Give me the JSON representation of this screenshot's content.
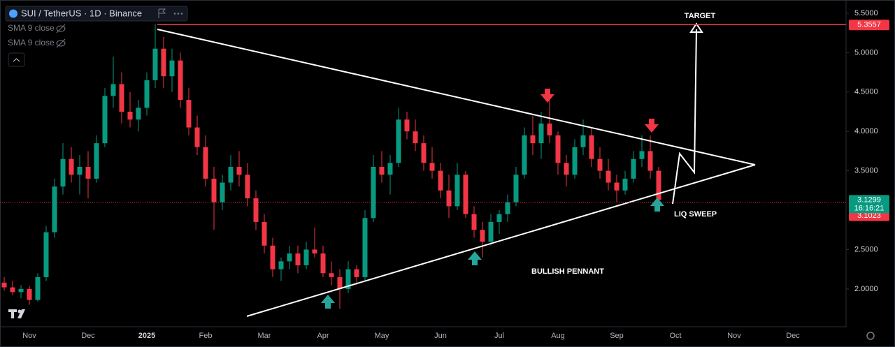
{
  "chart_data": {
    "type": "candlestick",
    "title": "SUI / TetherUS · 1D · Binance",
    "indicators": [
      "SMA 9 close",
      "SMA 9 close"
    ],
    "categories": [
      null,
      null,
      null,
      "Nov",
      null,
      null,
      null,
      null,
      null,
      null,
      "Dec",
      null,
      null,
      null,
      null,
      null,
      null,
      "2025",
      null,
      null,
      null,
      null,
      null,
      null,
      "Feb",
      null,
      null,
      null,
      null,
      null,
      null,
      "Mar",
      null,
      null,
      null,
      null,
      null,
      null,
      "Apr",
      null,
      null,
      null,
      null,
      null,
      null,
      "May",
      null,
      null,
      null,
      null,
      null,
      null,
      "Jun",
      null,
      null,
      null,
      null,
      null,
      null,
      "Jul",
      null,
      null,
      null,
      null,
      null,
      null,
      "Aug",
      null,
      null,
      null,
      null,
      null,
      null,
      "Sep",
      null,
      null,
      null,
      null,
      null,
      null,
      "Oct",
      null,
      null,
      null,
      null,
      null,
      null,
      "Nov",
      null,
      null,
      null,
      null,
      null,
      null,
      "Dec",
      null,
      null,
      null,
      null
    ],
    "open": [
      2.08,
      2.02,
      1.96,
      2.0,
      1.86,
      2.15,
      2.72,
      3.3,
      3.65,
      3.45,
      3.55,
      3.4,
      3.85,
      4.45,
      4.6,
      4.25,
      4.15,
      4.3,
      4.65,
      5.05,
      4.7,
      4.9,
      4.4,
      4.05,
      3.8,
      3.4,
      3.1,
      3.35,
      3.55,
      3.45,
      3.15,
      2.85,
      2.55,
      2.25,
      2.35,
      2.45,
      2.3,
      2.5,
      2.45,
      2.2,
      2.15,
      2.0,
      2.25,
      2.15,
      2.9,
      3.55,
      3.45,
      3.6,
      4.15,
      4.0,
      3.85,
      3.6,
      3.5,
      3.25,
      3.05,
      3.45,
      2.95,
      2.75,
      2.6,
      2.85,
      2.95,
      3.1,
      3.45,
      3.95,
      3.85,
      4.1,
      3.95,
      3.6,
      3.45,
      3.8,
      3.95,
      3.65,
      3.5,
      3.35,
      3.25,
      3.4,
      3.65,
      3.75,
      3.5,
      null,
      null,
      null,
      null,
      null,
      null,
      null,
      null,
      null,
      null,
      null,
      null,
      null,
      null,
      null,
      null,
      null,
      null,
      null,
      null
    ],
    "high": [
      2.15,
      2.1,
      2.05,
      2.04,
      2.2,
      2.8,
      3.4,
      3.85,
      3.8,
      3.7,
      3.75,
      3.95,
      4.55,
      4.95,
      4.75,
      4.5,
      4.4,
      4.75,
      5.36,
      5.2,
      5.05,
      5.0,
      4.55,
      4.2,
      3.95,
      3.55,
      3.45,
      3.7,
      3.75,
      3.6,
      3.25,
      2.95,
      2.65,
      2.4,
      2.55,
      2.55,
      2.6,
      2.78,
      2.55,
      2.35,
      2.25,
      2.35,
      2.3,
      3.0,
      3.7,
      3.75,
      3.7,
      4.3,
      4.25,
      4.15,
      3.95,
      3.8,
      3.6,
      3.45,
      3.6,
      3.5,
      3.05,
      2.85,
      2.95,
      3.0,
      3.2,
      3.55,
      4.05,
      4.2,
      4.25,
      4.4,
      4.0,
      3.7,
      3.9,
      4.15,
      4.05,
      3.8,
      3.65,
      3.45,
      3.5,
      3.75,
      3.95,
      3.95,
      3.55,
      null,
      null,
      null,
      null,
      null,
      null,
      null,
      null,
      null,
      null,
      null,
      null,
      null,
      null,
      null,
      null,
      null,
      null,
      null,
      null
    ],
    "low": [
      1.98,
      1.92,
      1.88,
      1.8,
      1.84,
      2.1,
      2.65,
      3.2,
      3.35,
      3.2,
      3.15,
      3.35,
      3.8,
      4.3,
      4.1,
      4.05,
      4.0,
      4.2,
      4.55,
      4.55,
      4.5,
      4.3,
      3.95,
      3.7,
      3.3,
      2.75,
      3.0,
      3.25,
      3.3,
      3.05,
      2.75,
      2.45,
      2.15,
      2.1,
      2.25,
      2.2,
      2.25,
      2.4,
      2.15,
      2.05,
      1.75,
      1.95,
      2.05,
      2.1,
      2.85,
      3.35,
      3.2,
      3.55,
      3.9,
      3.75,
      3.5,
      3.4,
      3.15,
      2.9,
      3.0,
      2.9,
      2.65,
      2.4,
      2.55,
      2.7,
      2.85,
      3.05,
      3.4,
      3.7,
      3.65,
      3.85,
      3.45,
      3.3,
      3.4,
      3.7,
      3.55,
      3.4,
      3.25,
      3.1,
      3.2,
      3.35,
      3.55,
      3.4,
      3.1,
      null,
      null,
      null,
      null,
      null,
      null,
      null,
      null,
      null,
      null,
      null,
      null,
      null,
      null,
      null,
      null,
      null,
      null,
      null,
      null
    ],
    "close": [
      2.02,
      1.96,
      2.0,
      1.86,
      2.15,
      2.72,
      3.3,
      3.65,
      3.45,
      3.55,
      3.4,
      3.85,
      4.45,
      4.6,
      4.25,
      4.15,
      4.3,
      4.65,
      5.05,
      4.7,
      4.9,
      4.4,
      4.05,
      3.8,
      3.4,
      3.1,
      3.35,
      3.55,
      3.45,
      3.15,
      2.85,
      2.55,
      2.25,
      2.35,
      2.45,
      2.3,
      2.5,
      2.45,
      2.2,
      2.15,
      2.0,
      2.25,
      2.15,
      2.9,
      3.55,
      3.45,
      3.6,
      4.15,
      4.0,
      3.85,
      3.6,
      3.5,
      3.25,
      3.05,
      3.45,
      2.95,
      2.75,
      2.6,
      2.85,
      2.95,
      3.1,
      3.45,
      3.95,
      3.85,
      4.1,
      3.95,
      3.6,
      3.45,
      3.8,
      3.95,
      3.65,
      3.5,
      3.35,
      3.25,
      3.4,
      3.65,
      3.75,
      3.5,
      3.1299,
      null,
      null,
      null,
      null,
      null,
      null,
      null,
      null,
      null,
      null,
      null,
      null,
      null,
      null,
      null,
      null,
      null,
      null,
      null,
      null
    ],
    "up_color": "#089981",
    "down_color": "#f23645",
    "ylim": [
      1.52,
      5.668
    ],
    "yticks": [
      {
        "value": 5.5,
        "label": "5.5000"
      },
      {
        "value": 5.0,
        "label": "5.0000"
      },
      {
        "value": 4.5,
        "label": "4.5000"
      },
      {
        "value": 4.0,
        "label": "4.0000"
      },
      {
        "value": 3.5,
        "label": "3.5000"
      },
      {
        "value": 2.5,
        "label": "2.5000"
      },
      {
        "value": 2.0,
        "label": "2.0000"
      }
    ],
    "lines": [
      {
        "value": 5.3557,
        "style": "solid",
        "color": "#f23645"
      },
      {
        "value": 3.1023,
        "style": "dotted",
        "color": "#f23645"
      }
    ],
    "countdown": "16:16:21",
    "annotations": [
      "TARGET",
      "LIQ SWEEP",
      "BULLISH PENNANT"
    ]
  }
}
